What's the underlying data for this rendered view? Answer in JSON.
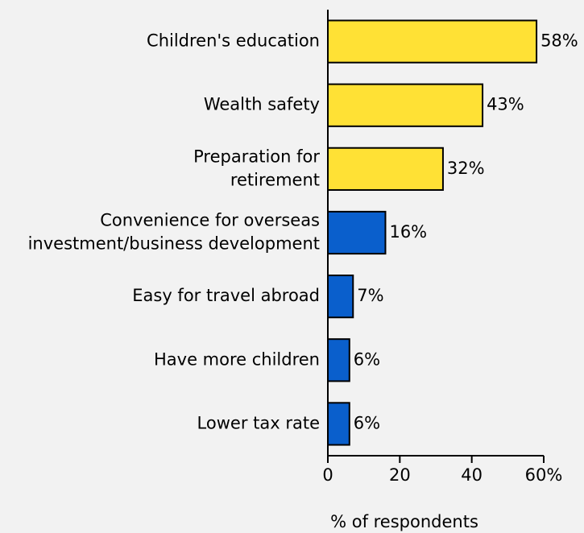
{
  "chart_data": {
    "type": "bar",
    "orientation": "horizontal",
    "categories": [
      [
        "Children's education"
      ],
      [
        "Wealth safety"
      ],
      [
        "Preparation for",
        "retirement"
      ],
      [
        "Convenience for overseas",
        "investment/business development"
      ],
      [
        "Easy for travel abroad"
      ],
      [
        "Have more children"
      ],
      [
        "Lower tax rate"
      ]
    ],
    "values": [
      58,
      43,
      32,
      16,
      7,
      6,
      6
    ],
    "value_labels": [
      "58%",
      "43%",
      "32%",
      "16%",
      "7%",
      "6%",
      "6%"
    ],
    "bar_colors": [
      "#ffe135",
      "#ffe135",
      "#ffe135",
      "#0a5fcc",
      "#0a5fcc",
      "#0a5fcc",
      "#0a5fcc"
    ],
    "xlim": [
      0,
      60
    ],
    "xticks": [
      0,
      20,
      40,
      60
    ],
    "xtick_labels": [
      "0",
      "20",
      "40",
      "60%"
    ],
    "xlabel": "% of respondents",
    "title": "",
    "grid": false,
    "legend": "none"
  }
}
